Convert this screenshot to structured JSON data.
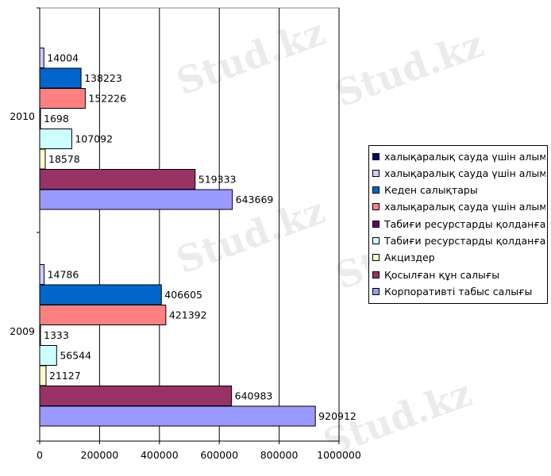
{
  "watermark": "Stud.kz",
  "chart_data": {
    "type": "bar",
    "orientation": "horizontal",
    "categories": [
      "2009",
      "2010"
    ],
    "xlim": [
      0,
      1000000
    ],
    "x_ticks": [
      "0",
      "200000",
      "400000",
      "600000",
      "800000",
      "1000000"
    ],
    "grid": true,
    "legend_position": "right",
    "series": [
      {
        "name": "Корпоративті табыс салығы",
        "color": "#9999ff",
        "values": [
          920912,
          643669
        ],
        "labels": [
          "920912",
          "643669"
        ]
      },
      {
        "name": "Қосылған құн салығы",
        "color": "#993366",
        "values": [
          640983,
          519333
        ],
        "labels": [
          "640983",
          "519333"
        ]
      },
      {
        "name": "Акциздер",
        "color": "#ffffcc",
        "values": [
          21127,
          18578
        ],
        "labels": [
          "21127",
          "18578"
        ]
      },
      {
        "name": "Табиғи ресурстарды қолданғаны",
        "color": "#ccffff",
        "values": [
          56544,
          107092
        ],
        "labels": [
          "56544",
          "107092"
        ]
      },
      {
        "name": "Табиғи ресурстарды қолданғаны",
        "color": "#660066",
        "values": [
          1333,
          1698
        ],
        "labels": [
          "1333",
          "1698"
        ]
      },
      {
        "name": "халықаралық сауда үшін алым,",
        "color": "#ff8080",
        "values": [
          421392,
          152226
        ],
        "labels": [
          "421392",
          "152226"
        ]
      },
      {
        "name": "Кеден салықтары",
        "color": "#0066cc",
        "values": [
          406605,
          138223
        ],
        "labels": [
          "406605",
          "138223"
        ]
      },
      {
        "name": "халықаралық сауда үшін алым,",
        "color": "#ccccff",
        "values": [
          14786,
          14004
        ],
        "labels": [
          "14786",
          "14004"
        ]
      },
      {
        "name": "халықаралық сауда үшін алым,",
        "color": "#000080",
        "values": [
          0,
          0
        ],
        "labels": [
          "",
          ""
        ]
      }
    ]
  }
}
